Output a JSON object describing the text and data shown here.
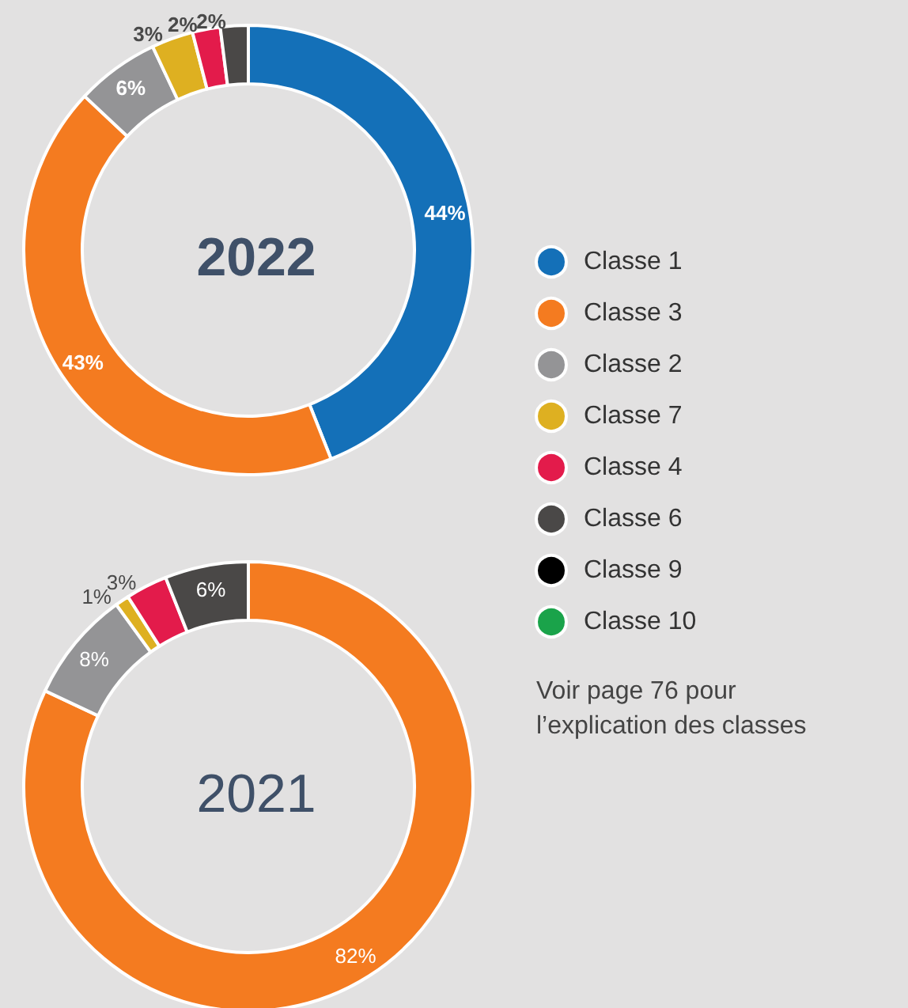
{
  "chart_data": {
    "type": "donut",
    "categories": [
      "Classe 1",
      "Classe 3",
      "Classe 2",
      "Classe 7",
      "Classe 4",
      "Classe 6",
      "Classe 9",
      "Classe 10"
    ],
    "colors": [
      "#1470b8",
      "#f47b20",
      "#949496",
      "#deb021",
      "#e31b4b",
      "#4a4847",
      "#000000",
      "#1aa34a"
    ],
    "series": [
      {
        "name": "2022",
        "values": [
          44,
          43,
          6,
          3,
          2,
          2,
          0,
          0
        ],
        "value_labels": [
          "44%",
          "43%",
          "6%",
          "3%",
          "2%",
          "2%",
          null,
          null
        ]
      },
      {
        "name": "2021",
        "values": [
          0,
          82,
          8,
          1,
          3,
          6,
          0,
          0
        ],
        "value_labels": [
          null,
          "82%",
          "8%",
          "1%",
          "3%",
          "6%",
          null,
          null
        ]
      }
    ],
    "legend": "right",
    "annotations": [
      "Voir page 76 pour\nl’explication des classes"
    ]
  }
}
